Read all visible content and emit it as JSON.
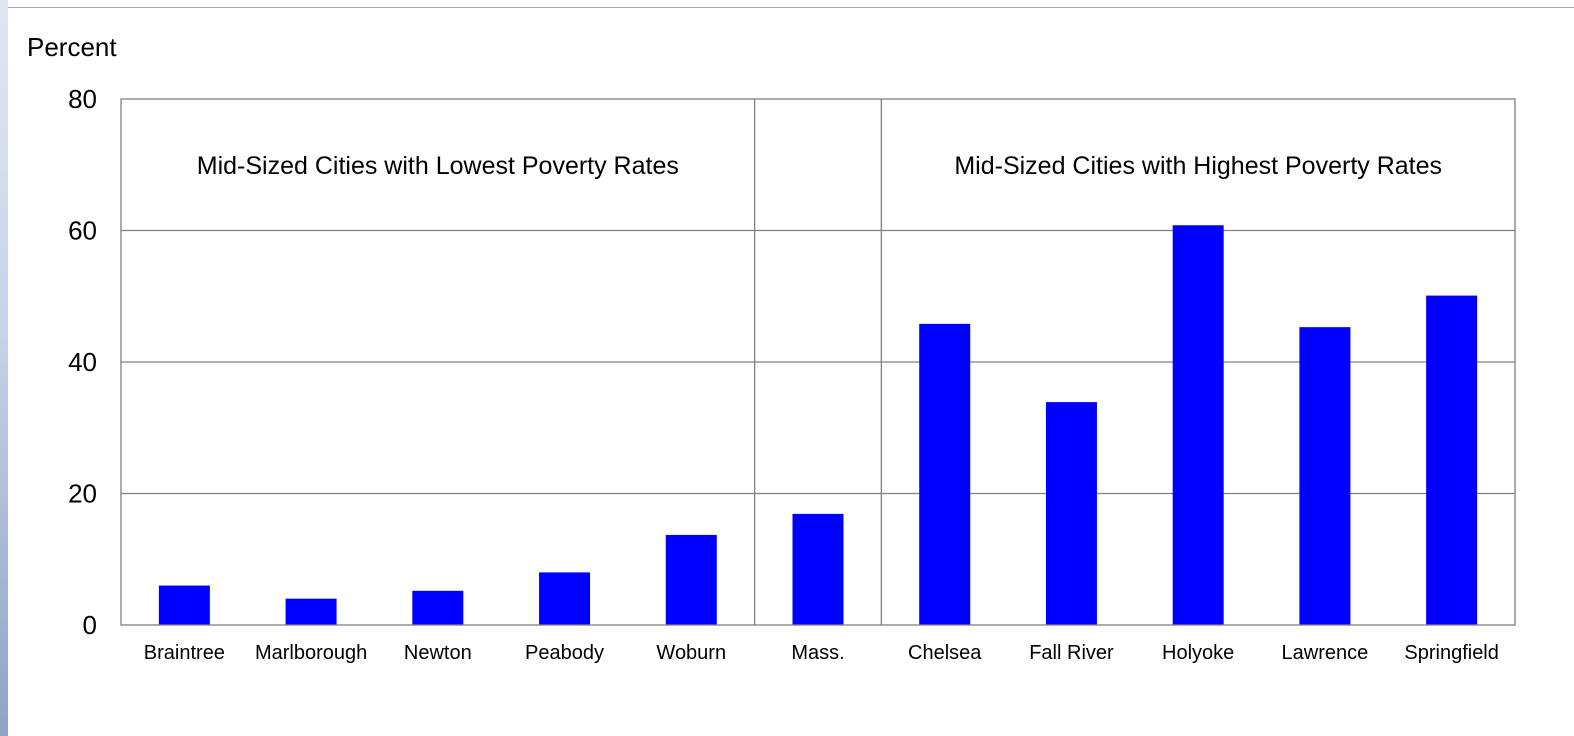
{
  "chart_data": {
    "type": "bar",
    "ylabel": "Percent",
    "ylim": [
      0,
      80
    ],
    "yticks": [
      0,
      20,
      40,
      60,
      80
    ],
    "grid": true,
    "legend": "none",
    "bar_color": "#0000FF",
    "categories": [
      "Braintree",
      "Marlborough",
      "Newton",
      "Peabody",
      "Woburn",
      "Mass.",
      "Chelsea",
      "Fall River",
      "Holyoke",
      "Lawrence",
      "Springfield"
    ],
    "values": [
      6,
      4,
      5.2,
      8,
      13.7,
      16.9,
      45.8,
      33.9,
      60.8,
      45.3,
      50.1
    ],
    "groups": [
      {
        "label": "Mid-Sized Cities with Lowest Poverty Rates",
        "start": 0,
        "end": 4
      },
      {
        "label": "",
        "start": 5,
        "end": 5
      },
      {
        "label": "Mid-Sized Cities with Highest Poverty Rates",
        "start": 6,
        "end": 10
      }
    ]
  }
}
